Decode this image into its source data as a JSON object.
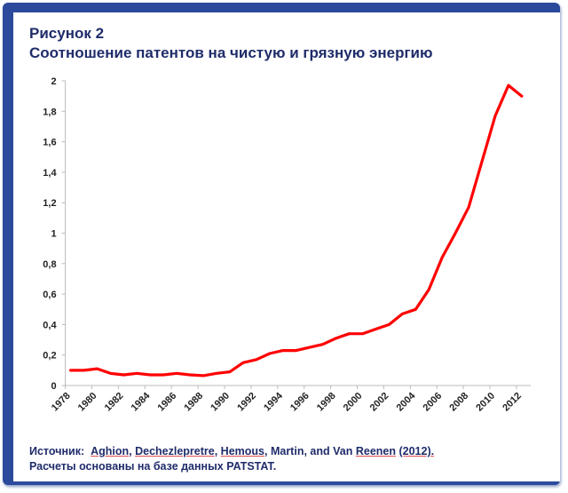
{
  "chart_data": {
    "type": "line",
    "title": "Рисунок 2",
    "subtitle": "Соотношение патентов на чистую и грязную энергию",
    "xlabel": "",
    "ylabel": "",
    "ylim": [
      0,
      2
    ],
    "yticks": [
      "0",
      "0,2",
      "0,4",
      "0,6",
      "0,8",
      "1",
      "1,2",
      "1,4",
      "1,6",
      "1,8",
      "2"
    ],
    "xticks": [
      "1978",
      "1980",
      "1982",
      "1984",
      "1986",
      "1988",
      "1990",
      "1992",
      "1994",
      "1996",
      "1998",
      "2000",
      "2002",
      "2004",
      "2006",
      "2008",
      "2010",
      "2012"
    ],
    "grid": false,
    "series": [
      {
        "name": "Соотношение",
        "color": "#ff0000",
        "x": [
          1978,
          1979,
          1980,
          1981,
          1982,
          1983,
          1984,
          1985,
          1986,
          1987,
          1988,
          1989,
          1990,
          1991,
          1992,
          1993,
          1994,
          1995,
          1996,
          1997,
          1998,
          1999,
          2000,
          2001,
          2002,
          2003,
          2004,
          2005,
          2006,
          2007,
          2008,
          2009,
          2010,
          2011,
          2012
        ],
        "values": [
          0.1,
          0.1,
          0.11,
          0.08,
          0.07,
          0.08,
          0.07,
          0.07,
          0.08,
          0.07,
          0.065,
          0.08,
          0.09,
          0.15,
          0.17,
          0.21,
          0.23,
          0.23,
          0.25,
          0.27,
          0.31,
          0.34,
          0.34,
          0.37,
          0.4,
          0.47,
          0.5,
          0.63,
          0.84,
          1.0,
          1.17,
          1.47,
          1.77,
          1.97,
          1.9
        ]
      }
    ]
  },
  "source": {
    "label": "Источник:",
    "authors": [
      "Aghion",
      "Dechezlepretre",
      "Hemous",
      "Martin"
    ],
    "and_text": "and",
    "last_author": "Van Reenen",
    "year": "(2012).",
    "note": "Расчеты основаны на базе данных PATSTAT."
  },
  "colors": {
    "frame": "#2b4a9b",
    "title": "#1f2c6a",
    "line": "#ff0000"
  }
}
